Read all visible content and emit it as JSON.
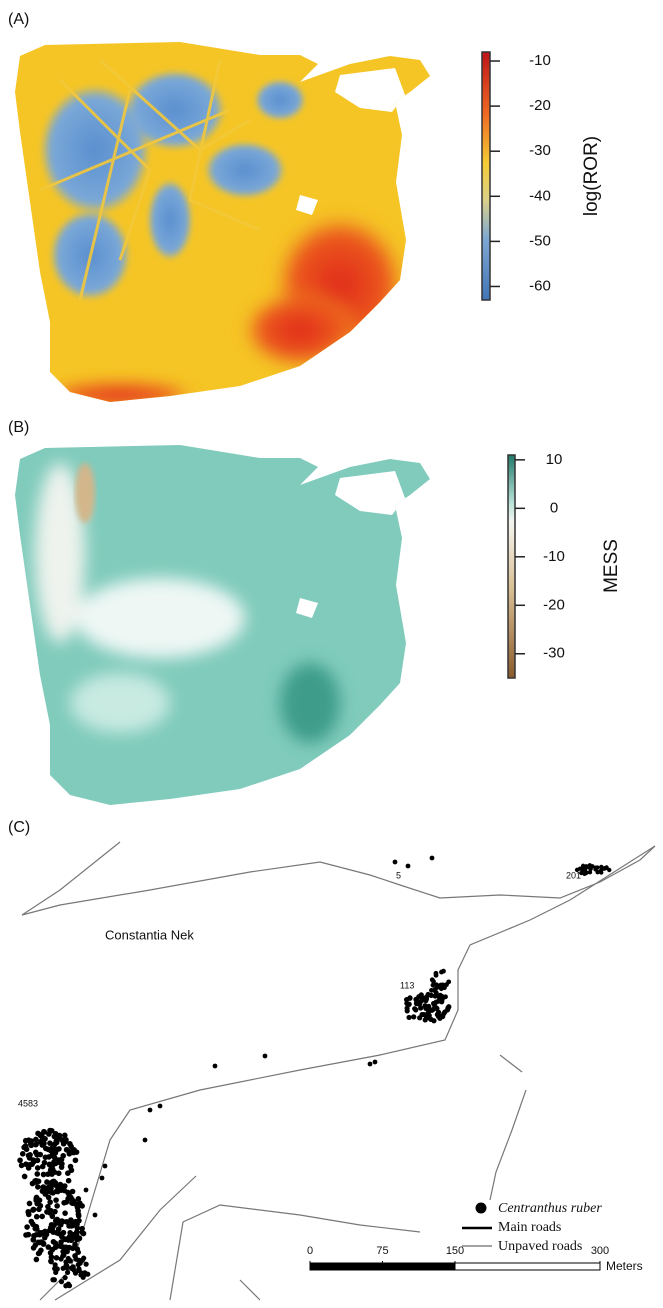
{
  "panels": {
    "a": {
      "label": "(A)",
      "colorbar": {
        "title": "log(ROR)",
        "lim": [
          -8,
          -63
        ],
        "ticks": [
          -10,
          -20,
          -30,
          -40,
          -50,
          -60
        ]
      }
    },
    "b": {
      "label": "(B)",
      "colorbar": {
        "title": "MESS",
        "lim": [
          11,
          -35
        ],
        "ticks": [
          10,
          0,
          -10,
          -20,
          -30
        ]
      }
    },
    "c": {
      "label": "(C)",
      "place": "Constantia Nek",
      "counts": [
        5,
        201,
        113,
        4583
      ],
      "legend": [
        "Centranthus ruber",
        "Main roads",
        "Unpaved roads"
      ],
      "scalebar": {
        "ticks": [
          0,
          75,
          150,
          300
        ],
        "unit": "Meters"
      }
    }
  }
}
